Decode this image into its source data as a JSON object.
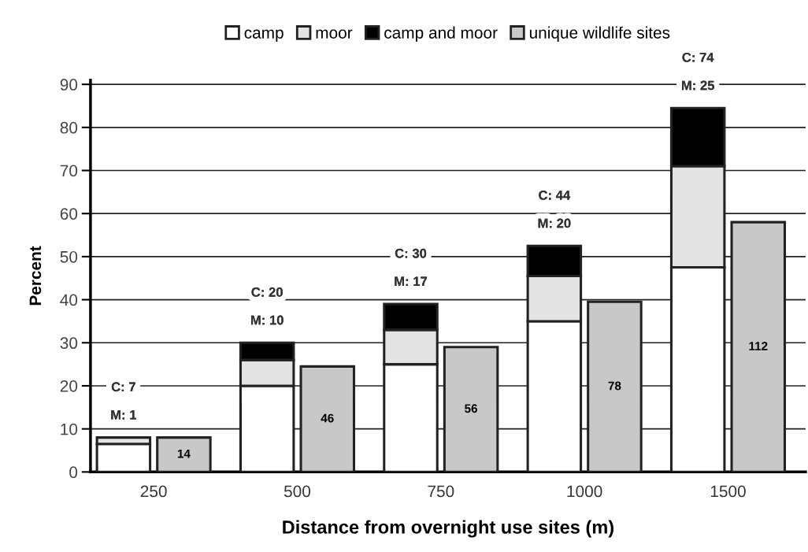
{
  "chart_data": [
    {
      "type": "bar",
      "xlabel": "Distance from overnight use sites (m)",
      "ylabel": "Percent",
      "categories": [
        "250",
        "500",
        "750",
        "1000",
        "1500"
      ],
      "stacked": true,
      "series": [
        {
          "name": "camp",
          "color": "#ffffff",
          "values": [
            6.5,
            20,
            25,
            35,
            47.5
          ]
        },
        {
          "name": "moor",
          "color": "#e3e3e3",
          "values": [
            1.5,
            6,
            8,
            10.5,
            23.5
          ]
        },
        {
          "name": "camp and moor",
          "color": "#000000",
          "values": [
            null,
            4,
            6,
            7,
            13.5
          ]
        }
      ],
      "annotations": [
        "C: 7",
        "M: 1",
        "C: 20",
        "M: 10",
        "C: 30",
        "M: 17",
        "C: 44",
        "M: 20",
        "C: 74",
        "M: 25"
      ],
      "ylim": [
        0,
        91
      ],
      "yticks": [
        0,
        10,
        20,
        30,
        40,
        50,
        60,
        70,
        80,
        90
      ],
      "grid": "y",
      "legend": "top"
    },
    {
      "type": "bar",
      "categories": [
        "250",
        "500",
        "750",
        "1000",
        "1500"
      ],
      "series": [
        {
          "name": "unique wildlife sites",
          "color": "#c8c8c8",
          "values": [
            8,
            24.5,
            29,
            39.5,
            58
          ]
        }
      ],
      "annotations": [
        "14",
        "46",
        "56",
        "78",
        "112"
      ],
      "ylim": [
        0,
        91
      ],
      "tick_labels": false
    }
  ]
}
